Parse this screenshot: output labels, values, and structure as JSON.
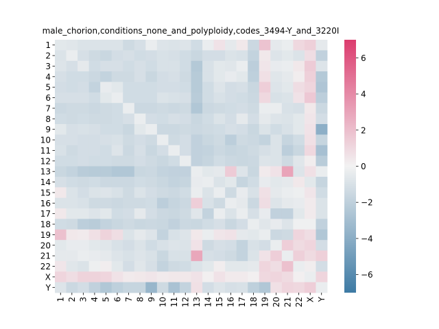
{
  "chart_data": {
    "type": "heatmap",
    "title": "male_chorion,conditions_none_and_polyploidy,codes_3494-Y_and_3220I",
    "xlabel": "",
    "ylabel": "",
    "labels": [
      "1",
      "2",
      "3",
      "4",
      "5",
      "6",
      "7",
      "8",
      "9",
      "10",
      "11",
      "12",
      "13",
      "14",
      "15",
      "16",
      "17",
      "18",
      "19",
      "20",
      "21",
      "22",
      "X",
      "Y"
    ],
    "colorbar": {
      "min": -7,
      "max": 7,
      "ticks": [
        -6,
        -4,
        -2,
        0,
        2,
        4,
        6
      ]
    },
    "colors": {
      "low": "#3d7aa4",
      "mid": "#f2f2f2",
      "high": "#dc3c6e"
    },
    "values": [
      [
        -0.6,
        -0.7,
        -0.9,
        -0.9,
        -0.9,
        -0.9,
        -1.4,
        -1.1,
        -0.3,
        -0.8,
        -0.9,
        -0.8,
        -1.3,
        -0.3,
        0.6,
        -0.5,
        0.4,
        -1.5,
        1.8,
        -0.5,
        -0.3,
        1.0,
        1.3,
        -0.5
      ],
      [
        -0.9,
        -0.3,
        -1.1,
        -1.4,
        -1.6,
        -1.2,
        -1.1,
        -1.3,
        -1.2,
        -1.0,
        -1.1,
        -1.3,
        -1.6,
        -1.2,
        -1.2,
        -0.9,
        -1.0,
        -1.8,
        0.4,
        -0.8,
        -0.6,
        -0.9,
        0.8,
        -1.9
      ],
      [
        -0.8,
        -1.1,
        -0.5,
        -1.3,
        -1.1,
        -1.1,
        -1.3,
        -1.1,
        -1.3,
        -1.0,
        -1.0,
        -1.3,
        -2.4,
        -1.0,
        -0.6,
        -0.7,
        -0.3,
        -2.1,
        0.5,
        -0.4,
        -0.3,
        0.4,
        1.5,
        -0.8
      ],
      [
        -1.1,
        -1.3,
        -1.3,
        -1.5,
        -1.8,
        -1.4,
        -1.4,
        -1.1,
        -1.6,
        -1.2,
        -1.1,
        -1.4,
        -2.3,
        -1.0,
        -0.6,
        -0.4,
        -0.6,
        -2.0,
        0.7,
        -0.7,
        -0.5,
        0.2,
        1.3,
        -2.4
      ],
      [
        -1.2,
        -1.3,
        -1.2,
        -1.8,
        -0.4,
        -0.6,
        -1.3,
        -1.3,
        -1.3,
        -1.2,
        -1.2,
        -1.3,
        -2.3,
        -1.3,
        -0.8,
        -1.2,
        -1.1,
        -1.6,
        1.4,
        -0.8,
        -0.6,
        0.8,
        1.1,
        -2.6
      ],
      [
        -1.1,
        -1.1,
        -1.1,
        -1.3,
        -0.6,
        -0.3,
        -1.3,
        -1.3,
        -1.3,
        -0.9,
        -1.0,
        -1.1,
        -2.2,
        -1.3,
        -1.0,
        -1.2,
        -1.3,
        -1.5,
        1.0,
        -1.0,
        -0.9,
        0.6,
        1.6,
        -2.1
      ],
      [
        -1.5,
        -1.4,
        -1.4,
        -1.5,
        -1.4,
        -1.3,
        -0.3,
        -1.5,
        -1.5,
        -1.4,
        -1.5,
        -1.4,
        -2.5,
        -1.5,
        -1.4,
        -1.3,
        -1.2,
        -1.4,
        -0.3,
        -0.3,
        -1.0,
        -1.1,
        0.4,
        -1.5
      ],
      [
        -1.3,
        -1.4,
        -1.3,
        -1.4,
        -1.4,
        -1.3,
        -1.1,
        -0.3,
        -1.2,
        -1.3,
        -1.1,
        -1.2,
        -1.6,
        -1.3,
        -0.9,
        -1.2,
        -0.5,
        -1.2,
        -0.5,
        -0.8,
        -0.9,
        -0.6,
        0.5,
        -1.2
      ],
      [
        -0.6,
        -1.1,
        -1.0,
        -1.1,
        -1.3,
        -1.3,
        -1.6,
        -0.6,
        -0.3,
        -1.5,
        -1.5,
        -1.4,
        -1.5,
        -1.4,
        -1.3,
        -1.1,
        -1.2,
        -1.6,
        -0.9,
        -1.3,
        -1.0,
        -0.6,
        0.6,
        -3.9
      ],
      [
        -1.1,
        -1.1,
        -1.2,
        -1.2,
        -1.1,
        -1.0,
        -1.4,
        -1.2,
        -1.4,
        -0.3,
        -1.4,
        -1.2,
        -1.9,
        -1.6,
        -1.4,
        -2.1,
        -1.4,
        -1.5,
        -1.8,
        -0.9,
        -1.7,
        -1.3,
        0.7,
        -1.7
      ],
      [
        -1.0,
        -1.4,
        -1.2,
        -1.2,
        -1.3,
        -0.8,
        -1.5,
        -1.1,
        -1.6,
        -1.2,
        -0.3,
        -1.2,
        -1.9,
        -1.8,
        -1.5,
        -1.7,
        -1.6,
        -1.4,
        -1.1,
        -0.9,
        -2.1,
        -1.6,
        1.0,
        -2.9
      ],
      [
        -1.3,
        -1.3,
        -1.2,
        -1.3,
        -1.3,
        -1.4,
        -1.4,
        -1.2,
        -1.4,
        -1.6,
        -1.3,
        -0.3,
        -1.9,
        -1.7,
        -1.3,
        -1.5,
        -1.6,
        -1.5,
        -0.8,
        -0.9,
        -1.4,
        -0.7,
        0.2,
        -2.2
      ],
      [
        -1.6,
        -1.8,
        -2.2,
        -2.3,
        -2.3,
        -2.5,
        -2.5,
        -1.6,
        -1.5,
        -1.8,
        -1.9,
        -1.9,
        -0.3,
        -0.6,
        -0.5,
        1.5,
        -0.8,
        -1.6,
        0.3,
        0.6,
        3.0,
        -0.8,
        0.7,
        -0.3
      ],
      [
        -1.1,
        -1.3,
        -1.4,
        -1.3,
        -1.5,
        -1.5,
        -1.5,
        -1.3,
        -1.4,
        -1.6,
        -1.8,
        -1.7,
        -0.4,
        -0.3,
        -0.9,
        -0.6,
        -1.7,
        -1.3,
        -0.4,
        -0.6,
        -0.5,
        0.4,
        -0.6,
        -1.7
      ],
      [
        0.4,
        -0.9,
        -1.2,
        -0.9,
        -0.8,
        -1.0,
        -1.4,
        -0.9,
        -1.2,
        -1.4,
        -1.5,
        -1.3,
        -0.3,
        -0.9,
        -0.3,
        -1.4,
        -0.4,
        -1.0,
        0.7,
        -0.5,
        -0.3,
        -0.2,
        0.5,
        -1.3
      ],
      [
        -0.9,
        -0.9,
        -1.0,
        -1.4,
        -1.4,
        -1.5,
        -1.4,
        -1.4,
        -1.3,
        -2.1,
        -1.7,
        -1.5,
        1.4,
        -1.0,
        -1.4,
        -0.3,
        -0.5,
        -1.5,
        0.8,
        -0.8,
        -0.5,
        -0.4,
        0.3,
        -0.9
      ],
      [
        0.4,
        -0.6,
        -0.6,
        -0.8,
        -0.6,
        -1.3,
        -1.2,
        -0.5,
        -1.2,
        -1.5,
        -1.6,
        -1.4,
        -0.7,
        -1.8,
        -0.3,
        -0.9,
        -0.3,
        -1.1,
        -0.4,
        -1.9,
        -1.9,
        -0.6,
        0.3,
        -0.9
      ],
      [
        -1.3,
        -1.4,
        -2.1,
        -2.2,
        -1.8,
        -1.6,
        -1.4,
        -1.6,
        -1.5,
        -1.6,
        -1.9,
        -1.5,
        -1.6,
        -1.3,
        -1.1,
        -1.6,
        -1.2,
        -0.3,
        -0.7,
        -0.4,
        -0.8,
        -0.1,
        -0.1,
        -1.9
      ],
      [
        1.9,
        0.4,
        0.3,
        0.7,
        1.2,
        0.8,
        -0.9,
        -0.5,
        -0.8,
        -1.8,
        -1.0,
        -0.8,
        0.4,
        -0.3,
        0.5,
        0.6,
        -0.5,
        -0.6,
        -0.3,
        -1.5,
        -1.4,
        1.1,
        0.8,
        -2.5
      ],
      [
        -0.6,
        -0.4,
        -0.4,
        -0.6,
        -0.7,
        -1.0,
        -1.2,
        -0.9,
        -1.3,
        -1.0,
        -0.8,
        -0.9,
        0.6,
        -1.4,
        -1.1,
        -1.2,
        -1.8,
        -1.0,
        -1.2,
        -0.3,
        1.4,
        0.9,
        1.1,
        -1.2
      ],
      [
        -0.5,
        -0.5,
        -0.3,
        -0.4,
        -0.5,
        -0.8,
        -1.0,
        -0.8,
        -1.0,
        -1.6,
        -1.0,
        -1.0,
        2.9,
        -1.1,
        -1.2,
        -1.4,
        -1.8,
        -0.9,
        0.6,
        1.4,
        -0.3,
        1.3,
        0.9,
        1.3
      ],
      [
        0.5,
        -0.7,
        -0.9,
        -0.2,
        0.2,
        -0.6,
        -1.2,
        -0.7,
        -1.1,
        -1.8,
        -1.4,
        -1.3,
        -0.9,
        -0.6,
        0.2,
        -0.6,
        -0.6,
        -0.5,
        1.1,
        0.8,
        1.9,
        -0.3,
        0.2,
        -1.2
      ],
      [
        1.1,
        0.8,
        1.2,
        1.2,
        1.1,
        0.6,
        0.3,
        0.4,
        0.5,
        0.3,
        0.4,
        0.4,
        0.6,
        0.1,
        0.6,
        0.3,
        0.3,
        0.1,
        1.0,
        1.1,
        0.9,
        0.1,
        -0.3,
        1.1
      ],
      [
        -0.8,
        -1.5,
        -1.2,
        -1.9,
        -2.5,
        -2.0,
        -1.7,
        -1.7,
        -3.5,
        -1.4,
        -2.8,
        -1.8,
        0.7,
        -1.2,
        -0.8,
        -1.1,
        -1.0,
        -2.0,
        -2.5,
        0.7,
        1.1,
        1.0,
        1.4,
        -0.3
      ]
    ]
  }
}
